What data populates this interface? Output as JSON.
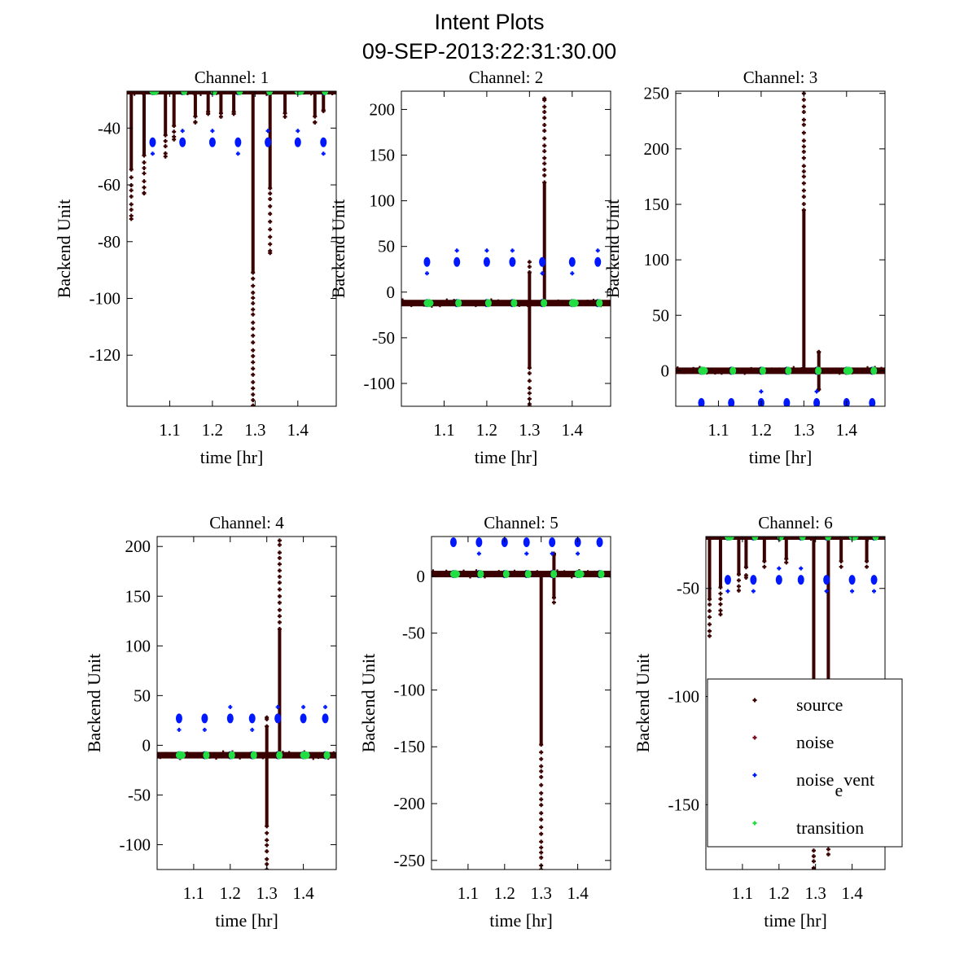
{
  "figure": {
    "title_line1": "Intent Plots",
    "title_line2": "09-SEP-2013:22:31:30.00"
  },
  "colors": {
    "source": "#3a0000",
    "noise": "#7a1020",
    "noise_event": "#0018ff",
    "transition": "#22dd44",
    "axis": "#000000"
  },
  "legend": {
    "placement": "lower-right of Channel 6",
    "entries": [
      {
        "label": "source",
        "color": "#3a0000"
      },
      {
        "label": "noise",
        "color": "#7a1020"
      },
      {
        "label": "noise",
        "sub": "e",
        "sup": "vent",
        "color": "#0018ff"
      },
      {
        "label": "transition",
        "color": "#22dd44"
      }
    ]
  },
  "chart_data": [
    {
      "type": "scatter",
      "title": "Channel: 1",
      "xlabel": "time [hr]",
      "ylabel": "Backend Unit",
      "xlim": [
        1.0,
        1.49
      ],
      "ylim": [
        -138,
        -27
      ],
      "xticks": [
        1.1,
        1.2,
        1.3,
        1.4
      ],
      "yticks": [
        -40,
        -60,
        -80,
        -100,
        -120
      ],
      "baseline": -27,
      "noise_event_level": -45,
      "spikes": [
        {
          "x": 1.01,
          "y": -72
        },
        {
          "x": 1.04,
          "y": -63
        },
        {
          "x": 1.09,
          "y": -50
        },
        {
          "x": 1.11,
          "y": -44
        },
        {
          "x": 1.16,
          "y": -38
        },
        {
          "x": 1.19,
          "y": -35
        },
        {
          "x": 1.22,
          "y": -36
        },
        {
          "x": 1.25,
          "y": -35
        },
        {
          "x": 1.295,
          "y": -138
        },
        {
          "x": 1.335,
          "y": -84
        },
        {
          "x": 1.37,
          "y": -36
        },
        {
          "x": 1.44,
          "y": -38
        },
        {
          "x": 1.46,
          "y": -34
        }
      ],
      "transitions_x": [
        1.06,
        1.13,
        1.2,
        1.26,
        1.33,
        1.4,
        1.46
      ]
    },
    {
      "type": "scatter",
      "title": "Channel: 2",
      "xlabel": "time [hr]",
      "ylabel": "Backend Unit",
      "xlim": [
        1.0,
        1.49
      ],
      "ylim": [
        -125,
        220
      ],
      "xticks": [
        1.1,
        1.2,
        1.3,
        1.4
      ],
      "yticks": [
        200,
        150,
        100,
        50,
        0,
        -50,
        -100
      ],
      "baseline": -12,
      "noise_event_level": 33,
      "spikes": [
        {
          "x": 1.3,
          "y": -125
        },
        {
          "x": 1.3,
          "y": 33
        },
        {
          "x": 1.335,
          "y": 212
        }
      ],
      "transitions_x": [
        1.06,
        1.13,
        1.2,
        1.26,
        1.33,
        1.4,
        1.46
      ]
    },
    {
      "type": "scatter",
      "title": "Channel: 3",
      "xlabel": "time [hr]",
      "ylabel": "Backend Unit",
      "xlim": [
        1.0,
        1.49
      ],
      "ylim": [
        -32,
        252
      ],
      "xticks": [
        1.1,
        1.2,
        1.3,
        1.4
      ],
      "yticks": [
        250,
        200,
        150,
        100,
        50,
        0
      ],
      "baseline": 0,
      "noise_event_level": -29,
      "spikes": [
        {
          "x": 1.3,
          "y": 250
        },
        {
          "x": 1.335,
          "y": -17
        },
        {
          "x": 1.335,
          "y": 17
        }
      ],
      "transitions_x": [
        1.06,
        1.13,
        1.2,
        1.26,
        1.33,
        1.4,
        1.46
      ]
    },
    {
      "type": "scatter",
      "title": "Channel: 4",
      "xlabel": "time [hr]",
      "ylabel": "Backend Unit",
      "xlim": [
        1.0,
        1.49
      ],
      "ylim": [
        -125,
        210
      ],
      "xticks": [
        1.1,
        1.2,
        1.3,
        1.4
      ],
      "yticks": [
        200,
        150,
        100,
        50,
        0,
        -50,
        -100
      ],
      "baseline": -10,
      "noise_event_level": 27,
      "spikes": [
        {
          "x": 1.3,
          "y": -125
        },
        {
          "x": 1.3,
          "y": 28
        },
        {
          "x": 1.335,
          "y": 206
        }
      ],
      "transitions_x": [
        1.06,
        1.13,
        1.2,
        1.26,
        1.33,
        1.4,
        1.46
      ]
    },
    {
      "type": "scatter",
      "title": "Channel: 5",
      "xlabel": "time [hr]",
      "ylabel": "Backend Unit",
      "xlim": [
        1.0,
        1.49
      ],
      "ylim": [
        -258,
        35
      ],
      "xticks": [
        1.1,
        1.2,
        1.3,
        1.4
      ],
      "yticks": [
        0,
        -50,
        -100,
        -150,
        -200,
        -250
      ],
      "baseline": 2,
      "noise_event_level": 30,
      "spikes": [
        {
          "x": 1.3,
          "y": -258
        },
        {
          "x": 1.335,
          "y": 20
        },
        {
          "x": 1.335,
          "y": -23
        }
      ],
      "transitions_x": [
        1.06,
        1.13,
        1.2,
        1.26,
        1.33,
        1.4,
        1.46
      ]
    },
    {
      "type": "scatter",
      "title": "Channel: 6",
      "xlabel": "time [hr]",
      "ylabel": "Backend Unit",
      "xlim": [
        1.0,
        1.49
      ],
      "ylim": [
        -180,
        -26
      ],
      "xticks": [
        1.1,
        1.2,
        1.3,
        1.4
      ],
      "yticks": [
        -50,
        -100,
        -150
      ],
      "baseline": -26,
      "noise_event_level": -46,
      "spikes": [
        {
          "x": 1.01,
          "y": -72
        },
        {
          "x": 1.04,
          "y": -62
        },
        {
          "x": 1.09,
          "y": -51
        },
        {
          "x": 1.11,
          "y": -45
        },
        {
          "x": 1.16,
          "y": -40
        },
        {
          "x": 1.22,
          "y": -38
        },
        {
          "x": 1.295,
          "y": -180
        },
        {
          "x": 1.335,
          "y": -173
        },
        {
          "x": 1.37,
          "y": -40
        },
        {
          "x": 1.44,
          "y": -40
        }
      ],
      "transitions_x": [
        1.06,
        1.13,
        1.2,
        1.26,
        1.33,
        1.4,
        1.46
      ]
    }
  ]
}
